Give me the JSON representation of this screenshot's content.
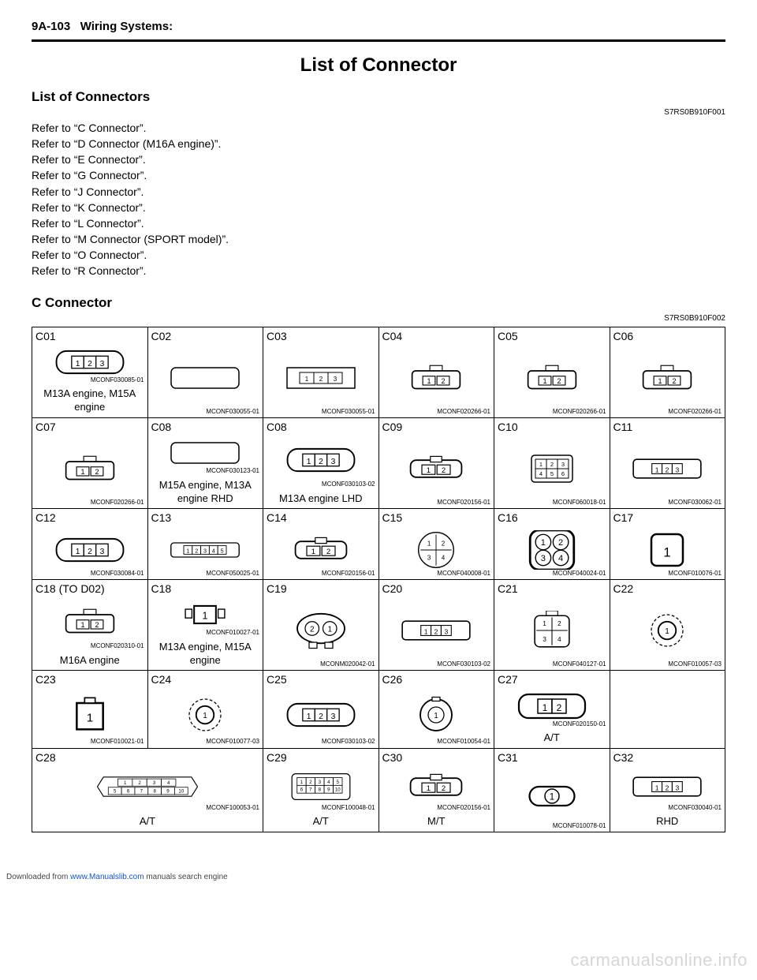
{
  "header": {
    "section_code": "9A-103",
    "section_name": "Wiring Systems:"
  },
  "main_title": "List of Connector",
  "list_of_connectors": {
    "title": "List of Connectors",
    "doc_id": "S7RS0B910F001",
    "refs": [
      "Refer to “C Connector”.",
      "Refer to “D Connector (M16A engine)”.",
      "Refer to “E Connector”.",
      "Refer to “G Connector”.",
      "Refer to “J Connector”.",
      "Refer to “K Connector”.",
      "Refer to “L Connector”.",
      "Refer to “M Connector (SPORT model)”.",
      "Refer to “O Connector”.",
      "Refer to “R Connector”."
    ]
  },
  "c_connector": {
    "title": "C Connector",
    "doc_id": "S7RS0B910F002",
    "rows": [
      [
        {
          "label": "C01",
          "code": "MCONF030085-01",
          "caption": "M13A engine, M15A engine",
          "shape": "h3",
          "colspan": 1
        },
        {
          "label": "C02",
          "code": "MCONF030055-01",
          "caption": "",
          "shape": "h3wide",
          "colspan": 1
        },
        {
          "label": "C03",
          "code": "MCONF030055-01",
          "caption": "",
          "shape": "h3frame",
          "colspan": 1
        },
        {
          "label": "C04",
          "code": "MCONF020266-01",
          "caption": "",
          "shape": "h2top",
          "colspan": 1
        },
        {
          "label": "C05",
          "code": "MCONF020266-01",
          "caption": "",
          "shape": "h2top",
          "colspan": 1
        },
        {
          "label": "C06",
          "code": "MCONF020266-01",
          "caption": "",
          "shape": "h2top",
          "colspan": 1
        }
      ],
      [
        {
          "label": "C07",
          "code": "MCONF020266-01",
          "caption": "",
          "shape": "h2top",
          "colspan": 1
        },
        {
          "label": "C08",
          "code": "MCONF030123-01",
          "caption": "M15A engine, M13A engine RHD",
          "shape": "h3wide",
          "colspan": 1
        },
        {
          "label": "C08",
          "code": "MCONF030103-02",
          "caption": "M13A engine LHD",
          "shape": "h3",
          "colspan": 1
        },
        {
          "label": "C09",
          "code": "MCONF020156-01",
          "caption": "",
          "shape": "h2mid",
          "colspan": 1
        },
        {
          "label": "C10",
          "code": "MCONF060018-01",
          "caption": "",
          "shape": "g23",
          "colspan": 1
        },
        {
          "label": "C11",
          "code": "MCONF030062-01",
          "caption": "",
          "shape": "h3tabs",
          "colspan": 1
        }
      ],
      [
        {
          "label": "C12",
          "code": "MCONF030084-01",
          "caption": "",
          "shape": "h3",
          "colspan": 1
        },
        {
          "label": "C13",
          "code": "MCONF050025-01",
          "caption": "",
          "shape": "h5",
          "colspan": 1
        },
        {
          "label": "C14",
          "code": "MCONF020156-01",
          "caption": "",
          "shape": "h2mid",
          "colspan": 1
        },
        {
          "label": "C15",
          "code": "MCONF040008-01",
          "caption": "",
          "shape": "circ4",
          "colspan": 1
        },
        {
          "label": "C16",
          "code": "MCONF040024-01",
          "caption": "",
          "shape": "sq4",
          "colspan": 1
        },
        {
          "label": "C17",
          "code": "MCONF010076-01",
          "caption": "",
          "shape": "sq1",
          "colspan": 1
        }
      ],
      [
        {
          "label": "C18 (TO D02)",
          "code": "MCONF020310-01",
          "caption": "M16A engine",
          "shape": "h2top",
          "colspan": 1
        },
        {
          "label": "C18",
          "code": "MCONF010027-01",
          "caption": "M13A engine, M15A engine",
          "shape": "h1tabs",
          "colspan": 1
        },
        {
          "label": "C19",
          "code": "MCONM020042-01",
          "caption": "",
          "shape": "circ2",
          "colspan": 1
        },
        {
          "label": "C20",
          "code": "MCONF030103-02",
          "caption": "",
          "shape": "h3tabs",
          "colspan": 1
        },
        {
          "label": "C21",
          "code": "MCONF040127-01",
          "caption": "",
          "shape": "sq4top",
          "colspan": 1
        },
        {
          "label": "C22",
          "code": "MCONF010057-03",
          "caption": "",
          "shape": "circ1d",
          "colspan": 1
        }
      ],
      [
        {
          "label": "C23",
          "code": "MCONF010021-01",
          "caption": "",
          "shape": "sq1s",
          "colspan": 1
        },
        {
          "label": "C24",
          "code": "MCONF010077-03",
          "caption": "",
          "shape": "circ1d",
          "colspan": 1
        },
        {
          "label": "C25",
          "code": "MCONF030103-02",
          "caption": "",
          "shape": "h3",
          "colspan": 1
        },
        {
          "label": "C26",
          "code": "MCONF010054-01",
          "caption": "",
          "shape": "circ1",
          "colspan": 1
        },
        {
          "label": "C27",
          "code": "MCONF020150-01",
          "caption": "A/T",
          "shape": "h2",
          "colspan": 1
        },
        {
          "label": "",
          "code": "",
          "caption": "",
          "shape": "",
          "colspan": 1
        }
      ],
      [
        {
          "label": "C28",
          "code": "MCONF100053-01",
          "caption": "A/T",
          "shape": "h10",
          "colspan": 2
        },
        {
          "label": "C29",
          "code": "MCONF100048-01",
          "caption": "A/T",
          "shape": "h10b",
          "colspan": 1
        },
        {
          "label": "C30",
          "code": "MCONF020156-01",
          "caption": "M/T",
          "shape": "h2mid",
          "colspan": 1
        },
        {
          "label": "C31",
          "code": "MCONF010078-01",
          "caption": "",
          "shape": "h1r",
          "colspan": 1
        },
        {
          "label": "C32",
          "code": "MCONF030040-01",
          "caption": "RHD",
          "shape": "h3tabs",
          "colspan": 1
        }
      ]
    ]
  },
  "footer": {
    "prefix": "Downloaded from ",
    "link_text": "www.Manualslib.com",
    "suffix": " manuals search engine"
  },
  "watermark": "carmanualsonline.info",
  "colors": {
    "text": "#000000",
    "bg": "#ffffff",
    "border": "#000000",
    "link": "#1155cc",
    "watermark": "#d6d6d6"
  }
}
